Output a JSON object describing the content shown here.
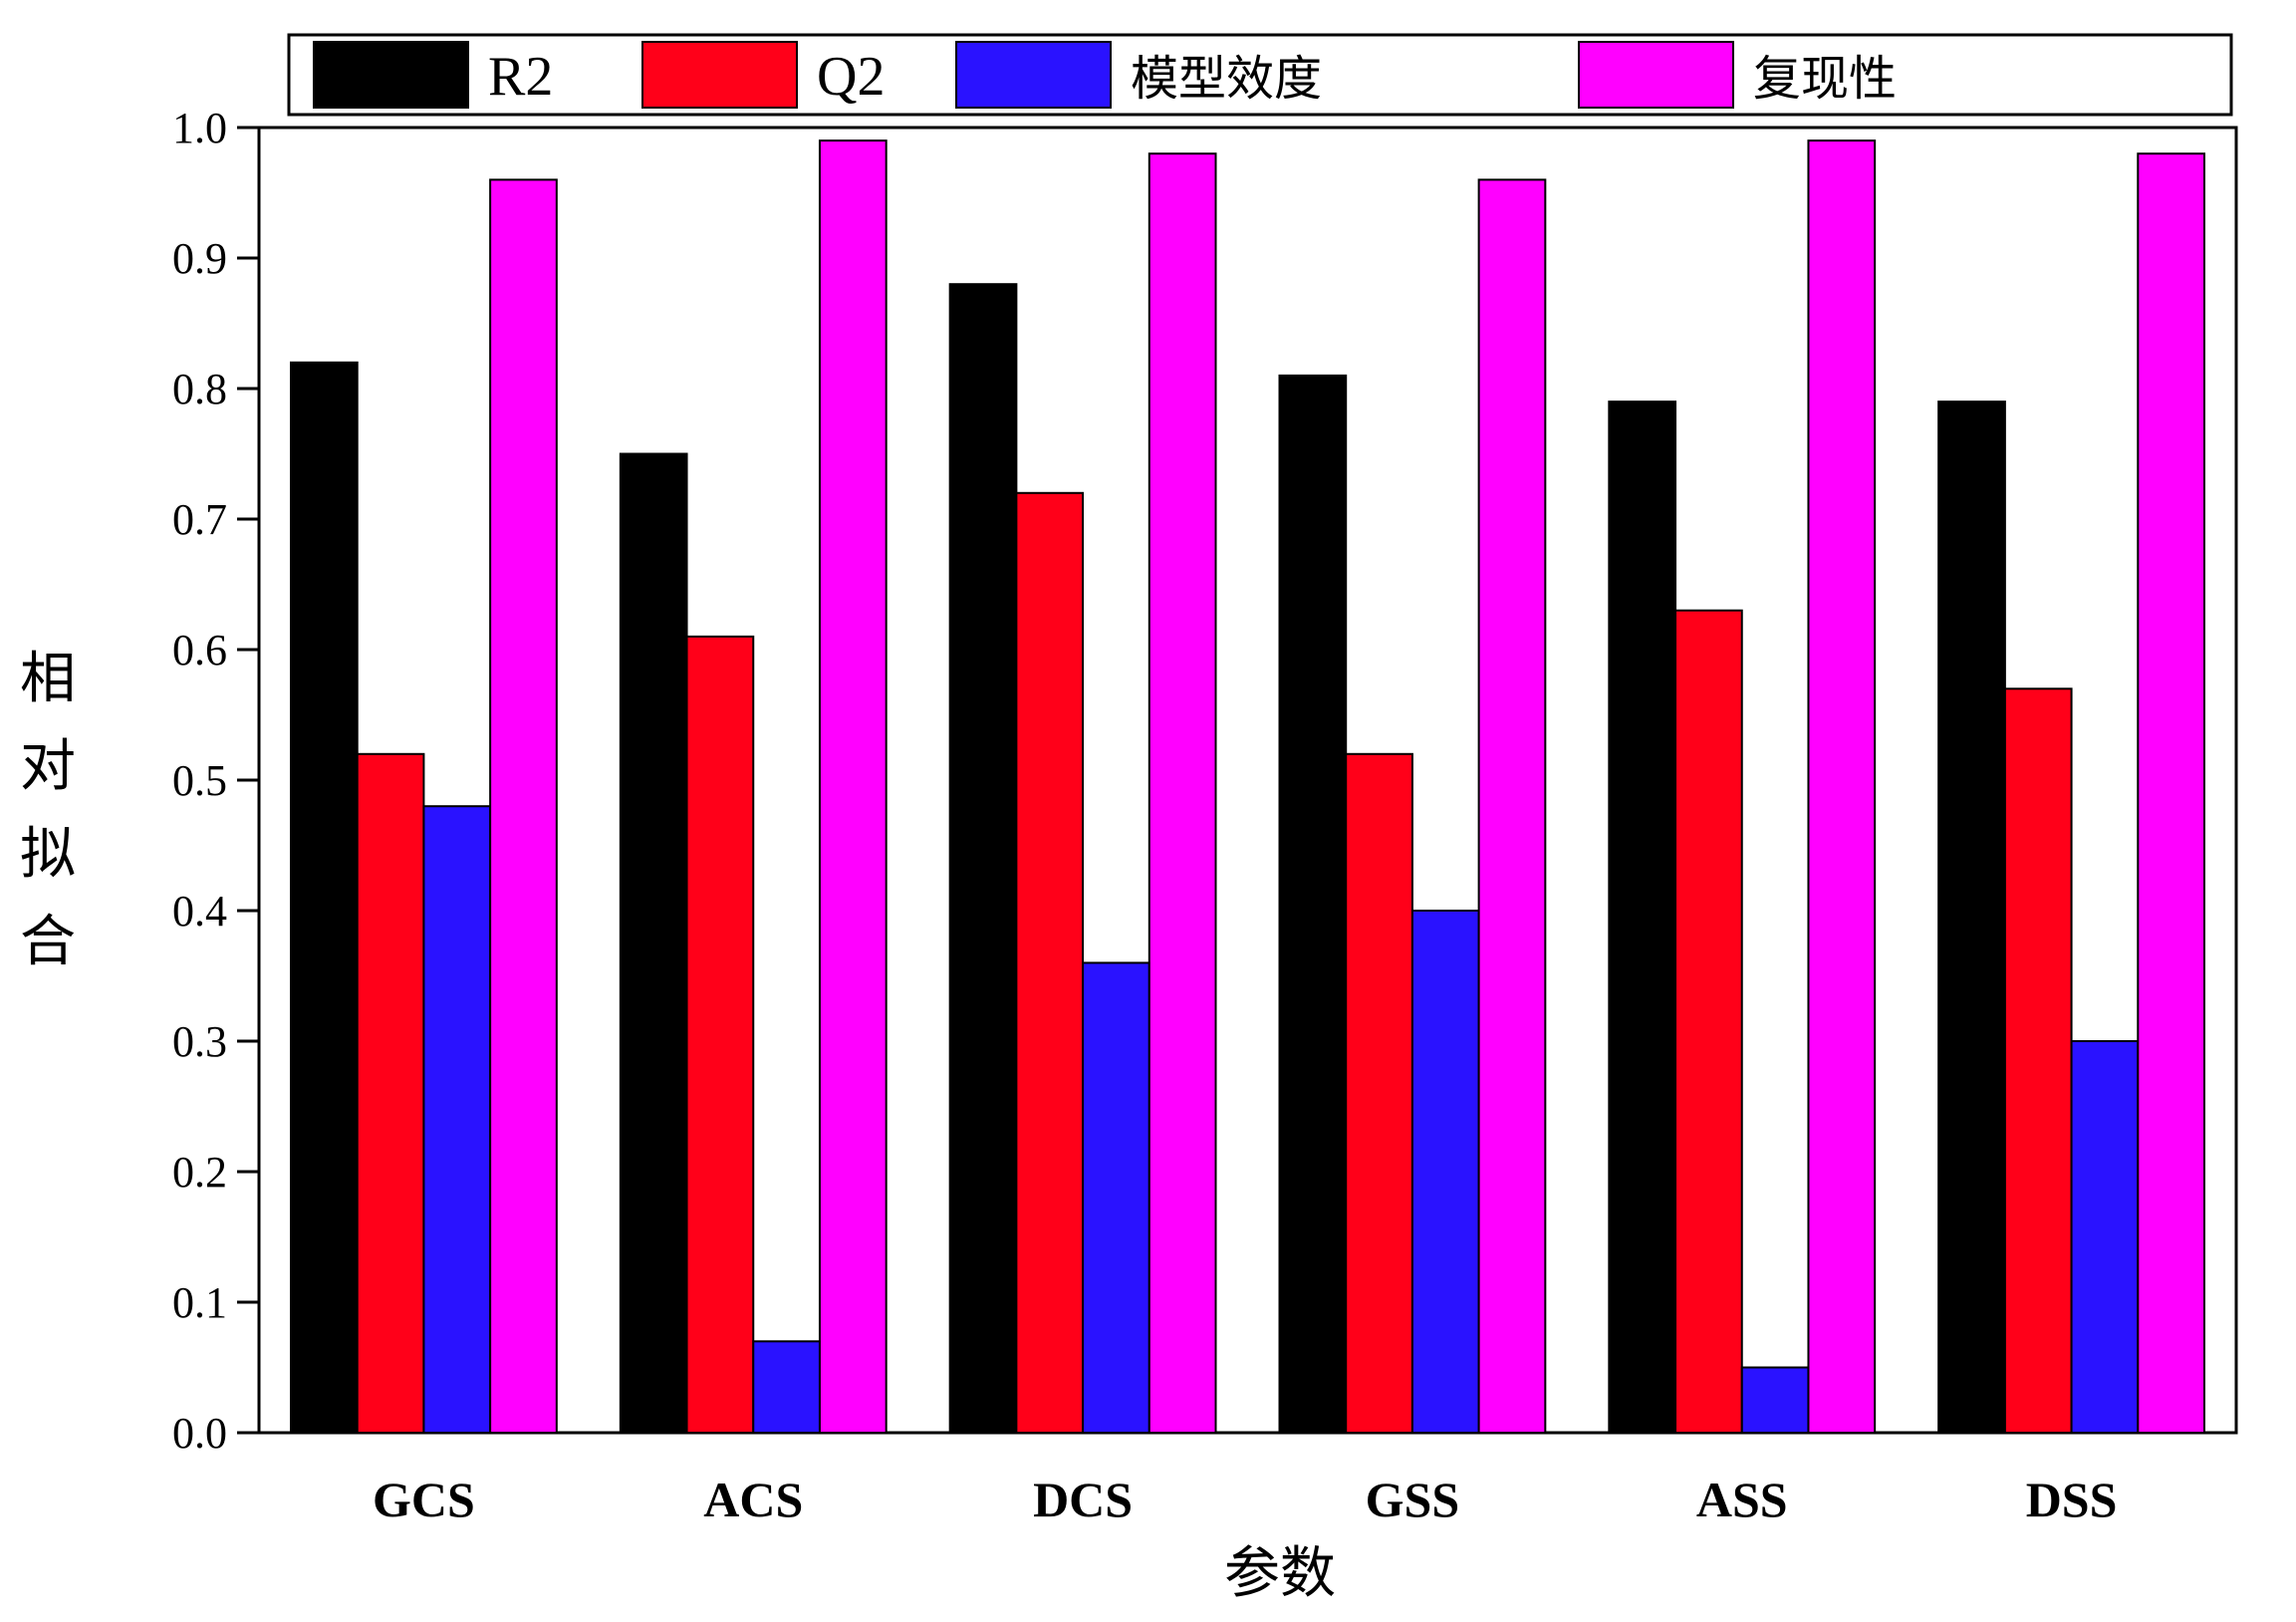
{
  "chart_data": {
    "type": "bar",
    "categories": [
      "GCS",
      "ACS",
      "DCS",
      "GSS",
      "ASS",
      "DSS"
    ],
    "series": [
      {
        "name": "R2",
        "color": "#000000",
        "values": [
          0.82,
          0.75,
          0.88,
          0.81,
          0.79,
          0.79
        ]
      },
      {
        "name": "Q2",
        "color": "#ff0019",
        "values": [
          0.52,
          0.61,
          0.72,
          0.52,
          0.63,
          0.57
        ]
      },
      {
        "name": "模型效度",
        "color": "#2a12ff",
        "values": [
          0.48,
          0.07,
          0.36,
          0.4,
          0.05,
          0.3
        ]
      },
      {
        "name": "复现性",
        "color": "#ff00ff",
        "values": [
          0.96,
          0.99,
          0.98,
          0.96,
          0.99,
          0.98
        ]
      }
    ],
    "yticks": [
      "0.0",
      "0.1",
      "0.2",
      "0.3",
      "0.4",
      "0.5",
      "0.6",
      "0.7",
      "0.8",
      "0.9",
      "1.0"
    ],
    "ylim": [
      0,
      1.0
    ],
    "xlabel": "参数",
    "ylabel": [
      "相",
      "对",
      "拟",
      "合"
    ],
    "legend_position": "top",
    "grid": false
  }
}
